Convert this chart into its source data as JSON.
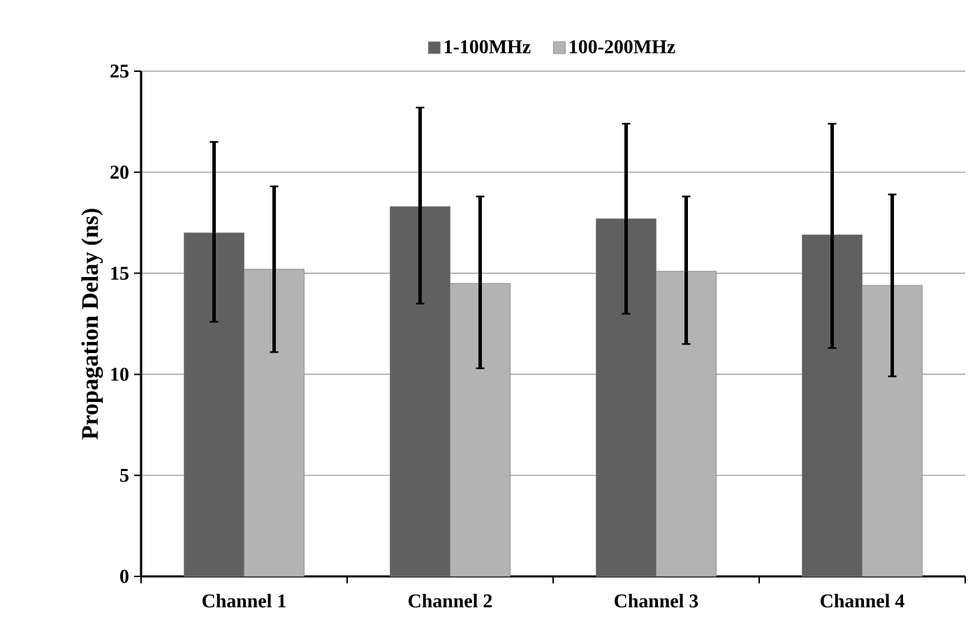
{
  "chart_data": {
    "type": "bar",
    "ylabel": "Propagation Delay (ns)",
    "categories": [
      "Channel 1",
      "Channel 2",
      "Channel 3",
      "Channel 4"
    ],
    "series": [
      {
        "name": "1-100MHz",
        "color": "#606060",
        "values": [
          17.0,
          18.3,
          17.7,
          16.9
        ],
        "errors": [
          [
            12.6,
            21.5
          ],
          [
            13.5,
            23.2
          ],
          [
            13.0,
            22.4
          ],
          [
            11.3,
            22.4
          ]
        ]
      },
      {
        "name": "100-200MHz",
        "color": "#b3b3b3",
        "values": [
          15.2,
          14.5,
          15.1,
          14.4
        ],
        "errors": [
          [
            11.1,
            19.3
          ],
          [
            10.3,
            18.8
          ],
          [
            11.5,
            18.8
          ],
          [
            9.9,
            18.9
          ]
        ]
      }
    ],
    "ylim": [
      0,
      25
    ],
    "yticks": [
      0,
      5,
      10,
      15,
      20,
      25
    ],
    "grid": "y",
    "legend": "top"
  }
}
